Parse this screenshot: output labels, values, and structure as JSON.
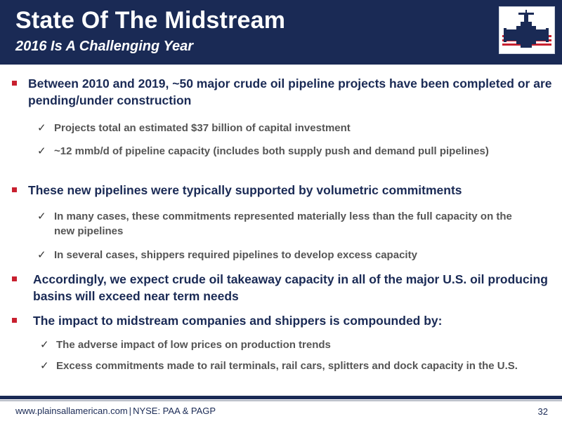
{
  "header": {
    "title": "State Of The Midstream",
    "subtitle": "2016 Is A Challenging Year"
  },
  "bullets": [
    {
      "text": "Between 2010 and 2019, ~50 major crude oil pipeline projects have been completed or are pending/under construction",
      "subs": [
        "Projects total an estimated $37 billion of capital investment",
        "~12 mmb/d of pipeline capacity (includes both supply push and demand pull pipelines)"
      ]
    },
    {
      "text": "These new pipelines were typically supported by volumetric commitments",
      "subs": [
        "In many cases, these commitments represented materially less than the full capacity on the new pipelines",
        "In several cases, shippers required pipelines to develop excess capacity"
      ]
    },
    {
      "text": "Accordingly, we expect crude oil takeaway capacity in all of the major U.S. oil producing basins will exceed near term needs",
      "subs": []
    },
    {
      "text": "The impact to midstream companies and shippers is compounded by:",
      "subs": [
        "The adverse impact of low prices on production trends",
        "Excess commitments made to rail terminals, rail cars, splitters and dock capacity in the U.S."
      ]
    }
  ],
  "footer": {
    "website": "www.plainsallamerican.com",
    "separator": "|",
    "ticker": "NYSE: PAA & PAGP",
    "page_number": "32"
  },
  "colors": {
    "navy": "#1a2a55",
    "bullet_red": "#c8202f",
    "sub_gray": "#555555"
  },
  "icons": {
    "logo": "valve-logo-icon",
    "bullet": "square-bullet-icon",
    "sub_bullet": "checkmark-icon"
  }
}
